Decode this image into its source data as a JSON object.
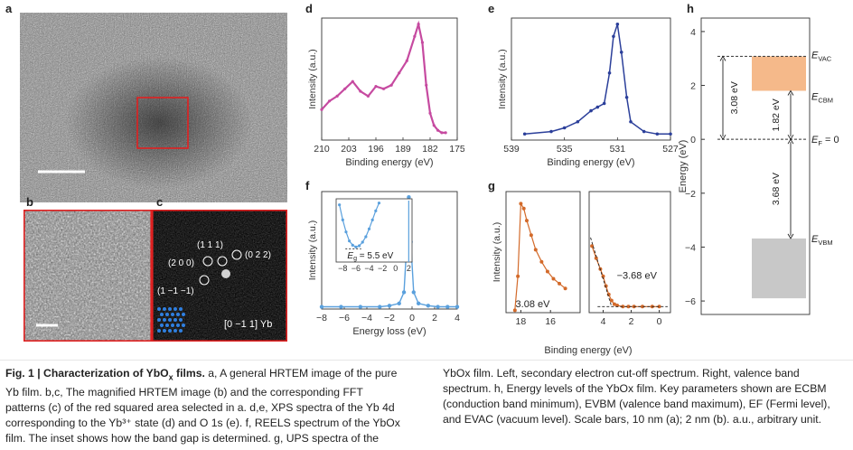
{
  "panels": {
    "a": {
      "label": "a"
    },
    "b": {
      "label": "b"
    },
    "c": {
      "label": "c",
      "spots": [
        "(1 1 1)",
        "(2 0 0)",
        "(0 2 2)",
        "(1 −1 −1)"
      ],
      "zone_axis": "[0 −1 1] Yb"
    },
    "d": {
      "label": "d"
    },
    "e": {
      "label": "e"
    },
    "f": {
      "label": "f",
      "inset_label": "= 5.5 eV"
    },
    "g": {
      "label": "g",
      "left_value": "3.08 eV",
      "right_value": "−3.68 eV"
    },
    "h": {
      "label": "h"
    }
  },
  "chart_data": [
    {
      "id": "d",
      "type": "line",
      "xlabel": "Binding energy (eV)",
      "ylabel": "Intensity (a.u.)",
      "xlim": [
        210,
        175
      ],
      "xticks": [
        "210",
        "203",
        "196",
        "189",
        "182",
        "175"
      ],
      "color": "#c64aa0",
      "x": [
        210,
        208,
        206,
        204,
        202,
        200,
        198,
        196,
        194,
        192,
        190,
        188,
        186,
        185,
        184,
        183,
        182,
        181,
        180,
        179,
        178
      ],
      "y": [
        0.25,
        0.32,
        0.36,
        0.42,
        0.48,
        0.4,
        0.36,
        0.44,
        0.42,
        0.45,
        0.55,
        0.65,
        0.85,
        0.95,
        0.8,
        0.45,
        0.22,
        0.12,
        0.08,
        0.06,
        0.06
      ]
    },
    {
      "id": "e",
      "type": "line",
      "xlabel": "Binding energy (eV)",
      "ylabel": "Intensity (a.u.)",
      "xlim": [
        540,
        525
      ],
      "xticks": [
        "539",
        "535",
        "531",
        "527"
      ],
      "color": "#2b3f9a",
      "x": [
        540,
        538,
        536,
        535,
        534,
        533,
        532.5,
        532,
        531.6,
        531.3,
        531,
        530.7,
        530.3,
        530,
        529,
        528,
        527,
        526
      ],
      "y": [
        0.05,
        0.05,
        0.07,
        0.1,
        0.15,
        0.24,
        0.27,
        0.3,
        0.55,
        0.85,
        0.95,
        0.72,
        0.35,
        0.15,
        0.07,
        0.05,
        0.05,
        0.05
      ]
    },
    {
      "id": "f",
      "type": "scatter",
      "xlabel": "Energy loss (eV)",
      "ylabel": "Intensity (a.u.)",
      "xlim": [
        -9,
        5
      ],
      "xticks": [
        "−8",
        "−6",
        "−4",
        "−2",
        "0",
        "2",
        "4"
      ],
      "color": "#5aa0dd",
      "x": [
        -9,
        -7,
        -5,
        -3,
        -2,
        -1,
        -0.5,
        -0.2,
        0,
        0.2,
        0.5,
        1,
        2,
        3,
        4,
        5
      ],
      "y": [
        0.02,
        0.02,
        0.02,
        0.02,
        0.03,
        0.05,
        0.15,
        0.6,
        1.0,
        0.6,
        0.15,
        0.05,
        0.03,
        0.02,
        0.02,
        0.02
      ],
      "inset": {
        "xticks": [
          "−8",
          "−6",
          "−4",
          "−2",
          "0",
          "2"
        ],
        "x": [
          -8.5,
          -8,
          -7.5,
          -7,
          -6.5,
          -6,
          -5.5,
          -5,
          -4.5,
          -4,
          -3.5,
          -3,
          -2.5
        ],
        "y": [
          0.95,
          0.7,
          0.5,
          0.35,
          0.28,
          0.25,
          0.27,
          0.33,
          0.42,
          0.55,
          0.7,
          0.85,
          0.98
        ]
      }
    },
    {
      "id": "g",
      "type": "scatter",
      "xlabel": "Binding energy (eV)",
      "ylabel": "Intensity (a.u.)",
      "color": "#d36a2a",
      "left": {
        "xlim": [
          19,
          14
        ],
        "xticks": [
          "18",
          "16"
        ],
        "x": [
          18.4,
          18.2,
          18,
          17.8,
          17.6,
          17.3,
          17,
          16.6,
          16.2,
          15.8,
          15.4,
          15
        ],
        "y": [
          0.02,
          0.3,
          0.9,
          0.86,
          0.76,
          0.64,
          0.52,
          0.42,
          0.34,
          0.28,
          0.24,
          0.2
        ]
      },
      "right": {
        "xlim": [
          5,
          -1
        ],
        "xticks": [
          "4",
          "2",
          "0"
        ],
        "x": [
          4.8,
          4.5,
          4.2,
          4,
          3.8,
          3.6,
          3.4,
          3.2,
          3,
          2.6,
          2.2,
          1.8,
          1.2,
          0.5,
          0
        ],
        "y": [
          0.55,
          0.45,
          0.36,
          0.3,
          0.22,
          0.15,
          0.1,
          0.07,
          0.06,
          0.05,
          0.05,
          0.05,
          0.05,
          0.05,
          0.05
        ]
      }
    },
    {
      "id": "h",
      "type": "diagram",
      "ylabel": "Energy (eV)",
      "ylim": [
        -6.5,
        4.5
      ],
      "yticks": [
        "4",
        "2",
        "0",
        "−2",
        "−4",
        "−6"
      ],
      "levels": {
        "E_VAC": 3.08,
        "E_CBM": 1.8,
        "E_F": 0,
        "E_VBM": -3.68
      },
      "gaps": [
        "3.08 eV",
        "1.82 eV",
        "3.68 eV"
      ],
      "level_labels": {
        "vac": "E",
        "vac_sub": "VAC",
        "cbm": "E",
        "cbm_sub": "CBM",
        "f": "E",
        "f_sub": "F",
        "f_suffix": " = 0",
        "vbm": "E",
        "vbm_sub": "VBM"
      },
      "colors": {
        "cbm": "#f5b98a",
        "vbm": "#c8c8c8"
      }
    }
  ],
  "caption": {
    "fig": "Fig. 1 | ",
    "title_prefix": "Characterization of YbO",
    "title_sub": "x",
    "title_suffix": " films.",
    "left": [
      " a, A general HRTEM image of the pure",
      "Yb film. b,c, The magnified HRTEM image (b) and the corresponding FFT",
      "patterns (c) of the red squared area selected in a. d,e, XPS spectra of the Yb 4d",
      "corresponding to the Yb³⁺ state (d) and O 1s (e). f, REELS spectrum of the YbOx",
      "film. The inset shows how the band gap is determined. g, UPS spectra of the"
    ],
    "right": [
      "YbOx film. Left, secondary electron cut-off spectrum. Right, valence band",
      "spectrum. h, Energy levels of the YbOx film. Key parameters shown are ECBM",
      "(conduction band minimum), EVBM (valence band maximum), EF (Fermi level),",
      "and EVAC (vacuum level). Scale bars, 10 nm (a); 2 nm (b). a.u., arbitrary unit."
    ]
  }
}
